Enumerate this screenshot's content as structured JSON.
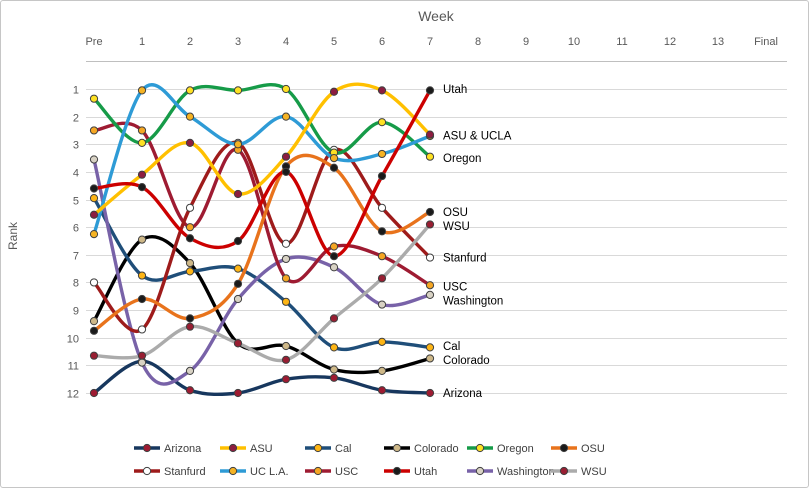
{
  "window": {
    "title": "Pac-12 weekly power ranking chart"
  },
  "chart_data": {
    "type": "line",
    "title": "Week",
    "xlabel": "Week",
    "ylabel": "Rank",
    "x_categories": [
      "Pre",
      "1",
      "2",
      "3",
      "4",
      "5",
      "6",
      "7",
      "8",
      "9",
      "10",
      "11",
      "12",
      "13",
      "Final"
    ],
    "y_ticks": [
      "1",
      "2",
      "3",
      "4",
      "5",
      "6",
      "7",
      "8",
      "9",
      "10",
      "11",
      "12"
    ],
    "ylim": [
      1,
      12
    ],
    "y_axis_reversed": true,
    "grid": "horizontal",
    "line_style": "smoothed-with-markers",
    "data_weeks_plotted": [
      "Pre",
      "1",
      "2",
      "3",
      "4",
      "5",
      "6",
      "7"
    ],
    "series": [
      {
        "name": "Arizona",
        "color": "#17375E",
        "marker": "#9E1B32",
        "values": [
          12.0,
          10.85,
          11.9,
          12.0,
          11.5,
          11.45,
          11.9,
          12.0
        ]
      },
      {
        "name": "ASU",
        "color": "#FFC000",
        "marker": "#8C1D40",
        "values": [
          5.55,
          4.1,
          2.95,
          4.8,
          3.45,
          1.1,
          1.05,
          2.65
        ]
      },
      {
        "name": "Cal",
        "color": "#1F4E79",
        "marker": "#FDB515",
        "values": [
          4.95,
          7.75,
          7.6,
          7.5,
          8.7,
          10.35,
          10.15,
          10.35
        ]
      },
      {
        "name": "Colorado",
        "color": "#000000",
        "marker": "#CEB888",
        "values": [
          9.4,
          6.45,
          7.3,
          10.2,
          10.3,
          11.15,
          11.2,
          10.75
        ]
      },
      {
        "name": "Oregon",
        "color": "#169B48",
        "marker": "#FEE123",
        "values": [
          1.35,
          2.95,
          1.05,
          1.05,
          1.0,
          3.3,
          2.2,
          3.45
        ]
      },
      {
        "name": "OSU",
        "color": "#E8731C",
        "marker": "#1A1A1A",
        "values": [
          9.75,
          8.6,
          9.3,
          8.05,
          3.8,
          3.85,
          6.15,
          5.45
        ]
      },
      {
        "name": "Stanfurd",
        "color": "#9E1B1B",
        "marker": "#FFFFFF",
        "values": [
          8.0,
          9.7,
          5.3,
          2.95,
          6.6,
          3.2,
          5.3,
          7.1
        ]
      },
      {
        "name": "UC L.A.",
        "color": "#2E9BD6",
        "marker": "#F5B324",
        "values": [
          6.25,
          1.05,
          2.0,
          3.0,
          2.0,
          3.5,
          3.35,
          2.7
        ]
      },
      {
        "name": "USC",
        "color": "#9E1B32",
        "marker": "#F5A623",
        "values": [
          2.5,
          2.5,
          6.0,
          3.2,
          7.85,
          6.7,
          7.05,
          8.1
        ]
      },
      {
        "name": "Utah",
        "color": "#CC0000",
        "marker": "#1A1A1A",
        "values": [
          4.6,
          4.55,
          6.4,
          6.5,
          4.0,
          7.05,
          4.15,
          1.05
        ]
      },
      {
        "name": "Washington",
        "color": "#7862A8",
        "marker": "#D8D2C4",
        "values": [
          3.55,
          10.9,
          11.2,
          8.6,
          7.15,
          7.45,
          8.8,
          8.45
        ]
      },
      {
        "name": "WSU",
        "color": "#ABABAB",
        "marker": "#981E32",
        "values": [
          10.65,
          10.65,
          9.6,
          10.2,
          10.8,
          9.3,
          7.85,
          5.9
        ]
      }
    ],
    "end_labels": [
      {
        "text": "Utah",
        "rank": 1.0
      },
      {
        "text": "ASU & UCLA",
        "rank": 2.68
      },
      {
        "text": "Oregon",
        "rank": 3.5
      },
      {
        "text": "OSU",
        "rank": 5.45
      },
      {
        "text": "WSU",
        "rank": 5.95
      },
      {
        "text": "Stanfurd",
        "rank": 7.1
      },
      {
        "text": "USC",
        "rank": 8.15
      },
      {
        "text": "Washington",
        "rank": 8.65
      },
      {
        "text": "Cal",
        "rank": 10.3
      },
      {
        "text": "Colorado",
        "rank": 10.8
      },
      {
        "text": "Arizona",
        "rank": 12.0
      }
    ],
    "legend": {
      "position": "bottom",
      "rows": [
        [
          "Arizona",
          "ASU",
          "Cal",
          "Colorado",
          "Oregon",
          "OSU"
        ],
        [
          "Stanfurd",
          "UC L.A.",
          "USC",
          "Utah",
          "Washington",
          "WSU"
        ]
      ]
    }
  }
}
